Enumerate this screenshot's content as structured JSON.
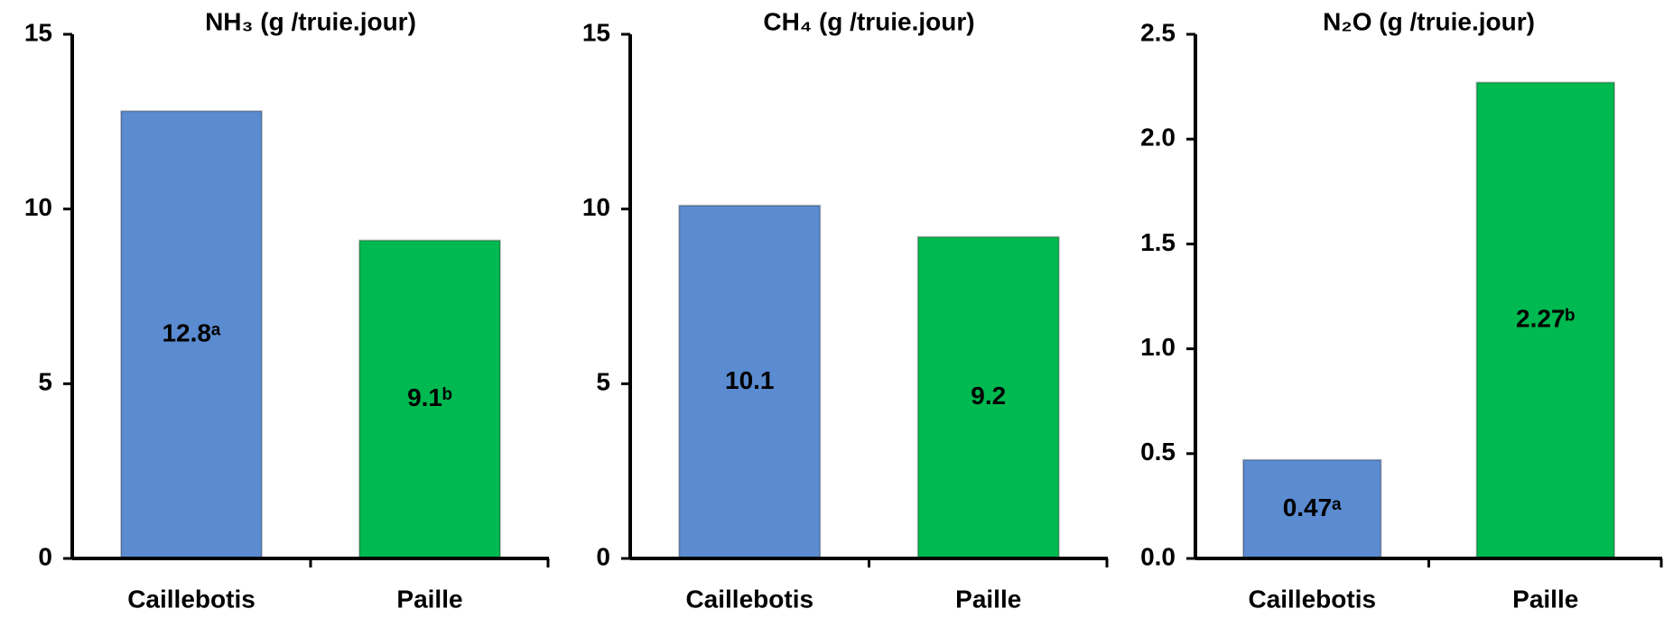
{
  "chart_data": [
    {
      "type": "bar",
      "title": "NH₃ (g /truie.jour)",
      "categories": [
        "Caillebotis",
        "Paille"
      ],
      "values": [
        12.8,
        9.1
      ],
      "value_labels": [
        "12.8ᵃ",
        "9.1ᵇ"
      ],
      "colors": [
        "#5b8bd0",
        "#00b950"
      ],
      "ylim": [
        0,
        15
      ],
      "yticks": [
        0,
        5,
        10,
        15
      ]
    },
    {
      "type": "bar",
      "title": "CH₄ (g /truie.jour)",
      "categories": [
        "Caillebotis",
        "Paille"
      ],
      "values": [
        10.1,
        9.2
      ],
      "colors": [
        "#5b8bd0",
        "#00b950"
      ],
      "ylim": [
        0,
        15
      ],
      "yticks": [
        0,
        5,
        10,
        15
      ]
    },
    {
      "type": "bar",
      "title": "N₂O (g /truie.jour)",
      "categories": [
        "Caillebotis",
        "Paille"
      ],
      "values": [
        0.47,
        2.27
      ],
      "value_labels": [
        "0.47ᵃ",
        "2.27ᵇ"
      ],
      "colors": [
        "#5b8bd0",
        "#00b950"
      ],
      "ylim": [
        0,
        2.5
      ],
      "yticks": [
        {
          "value": 0,
          "label": "0.0"
        },
        0.5,
        {
          "value": 1,
          "label": "1.0"
        },
        1.5,
        {
          "value": 2,
          "label": "2.0"
        },
        2.5
      ]
    }
  ]
}
